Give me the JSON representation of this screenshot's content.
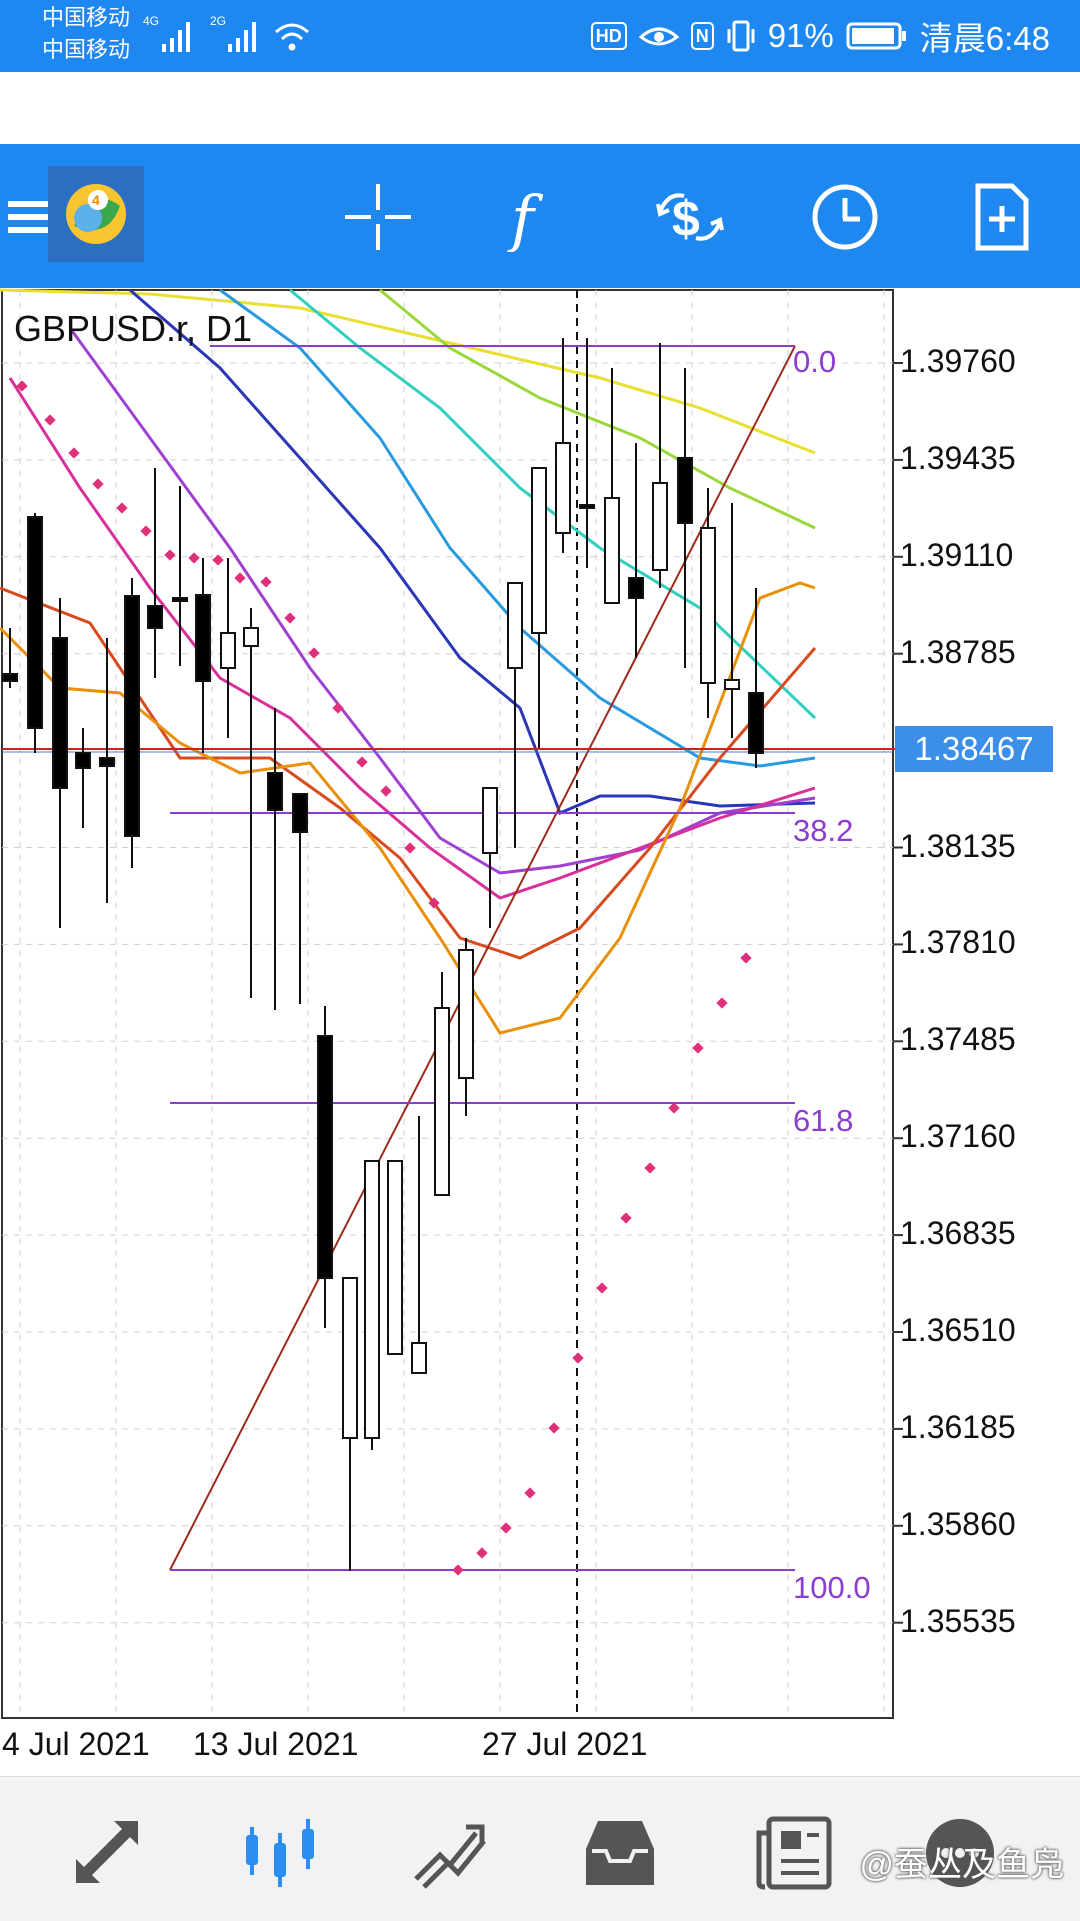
{
  "status_bar": {
    "carrier1": "中国移动",
    "carrier2": "中国移动",
    "net1": "4G",
    "net2": "2G",
    "hd": "HD",
    "nfc": "N",
    "battery_pct": "91%",
    "time": "清晨6:48"
  },
  "toolbar": {
    "icons": [
      "menu-icon",
      "metatrader-logo",
      "crosshair-icon",
      "indicators-icon",
      "trade-icon",
      "timeframe-icon",
      "new-order-icon"
    ]
  },
  "chart": {
    "symbol": "GBPUSD.r, D1",
    "current_price": "1.38467",
    "price_levels": [
      "1.39760",
      "1.39435",
      "1.39110",
      "1.38785",
      "1.38135",
      "1.37810",
      "1.37485",
      "1.37160",
      "1.36835",
      "1.36510",
      "1.36185",
      "1.35860",
      "1.35535"
    ],
    "fib_levels": [
      "0.0",
      "38.2",
      "61.8",
      "100.0"
    ],
    "dates": [
      "4 Jul 2021",
      "13 Jul 2021",
      "27 Jul 2021"
    ],
    "colors": {
      "bull": "#ffffff",
      "bear": "#000000",
      "fib": "#8a3dd0",
      "sar": "#e0307a",
      "price_line": "#cc2222"
    }
  },
  "bottom_nav": {
    "items": [
      "quotes-icon",
      "chart-icon",
      "trade-icon",
      "history-icon",
      "news-icon",
      "messages-icon"
    ],
    "active": "chart-icon"
  },
  "watermark": "@蚕丛及鱼凫"
}
